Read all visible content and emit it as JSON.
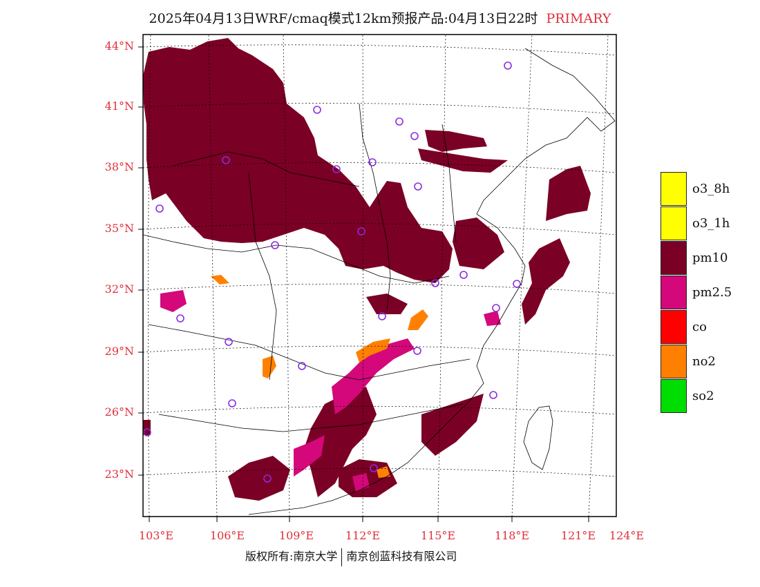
{
  "title": "2025年04月13日WRF/cmaq模式12km预报产品:04月13日22时",
  "title_tag": "PRIMARY",
  "colors": {
    "pm10": "#7b0025",
    "pm25": "#d4087a",
    "no2": "#ff8000",
    "label_red": "#e0303a",
    "station_marker": "#8a2be2"
  },
  "lat_labels": [
    "44°N",
    "41°N",
    "38°N",
    "35°N",
    "32°N",
    "29°N",
    "26°N",
    "23°N"
  ],
  "lon_labels": [
    "103°E",
    "106°E",
    "109°E",
    "112°E",
    "115°E",
    "118°E",
    "121°E",
    "124°E"
  ],
  "legend": [
    {
      "label": "o3_8h",
      "color": "#ffff00"
    },
    {
      "label": "o3_1h",
      "color": "#ffff00"
    },
    {
      "label": "pm10",
      "color": "#7b0025"
    },
    {
      "label": "pm2.5",
      "color": "#d4087a"
    },
    {
      "label": "co",
      "color": "#ff0000"
    },
    {
      "label": "no2",
      "color": "#ff8000"
    },
    {
      "label": "so2",
      "color": "#00dd00"
    }
  ],
  "footer": {
    "left": "版权所有:南京大学",
    "right": "南京创蓝科技有限公司"
  }
}
